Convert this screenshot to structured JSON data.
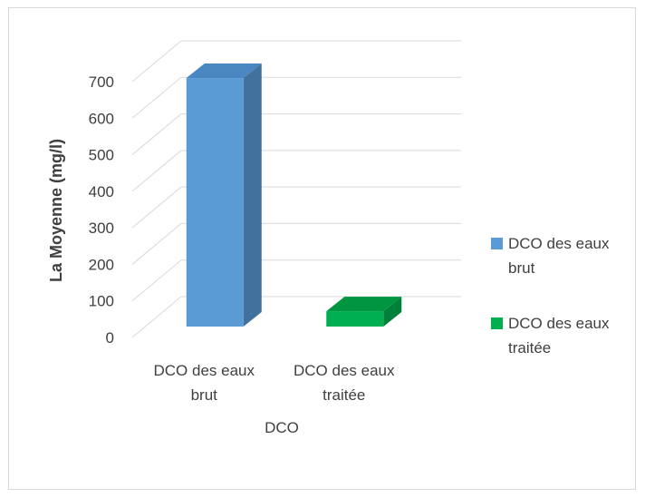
{
  "chart_data": {
    "type": "bar",
    "categories": [
      "DCO des eaux brut",
      "DCO des eaux traitée"
    ],
    "category_lines": [
      [
        "DCO des eaux",
        "brut"
      ],
      [
        "DCO des eaux",
        "traitée"
      ]
    ],
    "series": [
      {
        "name": "DCO des eaux brut",
        "legend_lines": [
          "DCO des eaux",
          "brut"
        ],
        "color": "#5b9bd5",
        "side_color": "#41719c",
        "top_color": "#4a86c0",
        "values": [
          680,
          null
        ]
      },
      {
        "name": "DCO des eaux traitée",
        "legend_lines": [
          "DCO des eaux",
          "traitée"
        ],
        "color": "#00b050",
        "side_color": "#00803a",
        "top_color": "#00963f",
        "values": [
          null,
          42
        ]
      }
    ],
    "yticks": [
      0,
      100,
      200,
      300,
      400,
      500,
      600,
      700
    ],
    "ylim": [
      0,
      700
    ],
    "ylabel": "La Moyenne (mg/l)",
    "xlabel": "DCO",
    "grid": true,
    "legend_position": "right",
    "three_d": true
  }
}
